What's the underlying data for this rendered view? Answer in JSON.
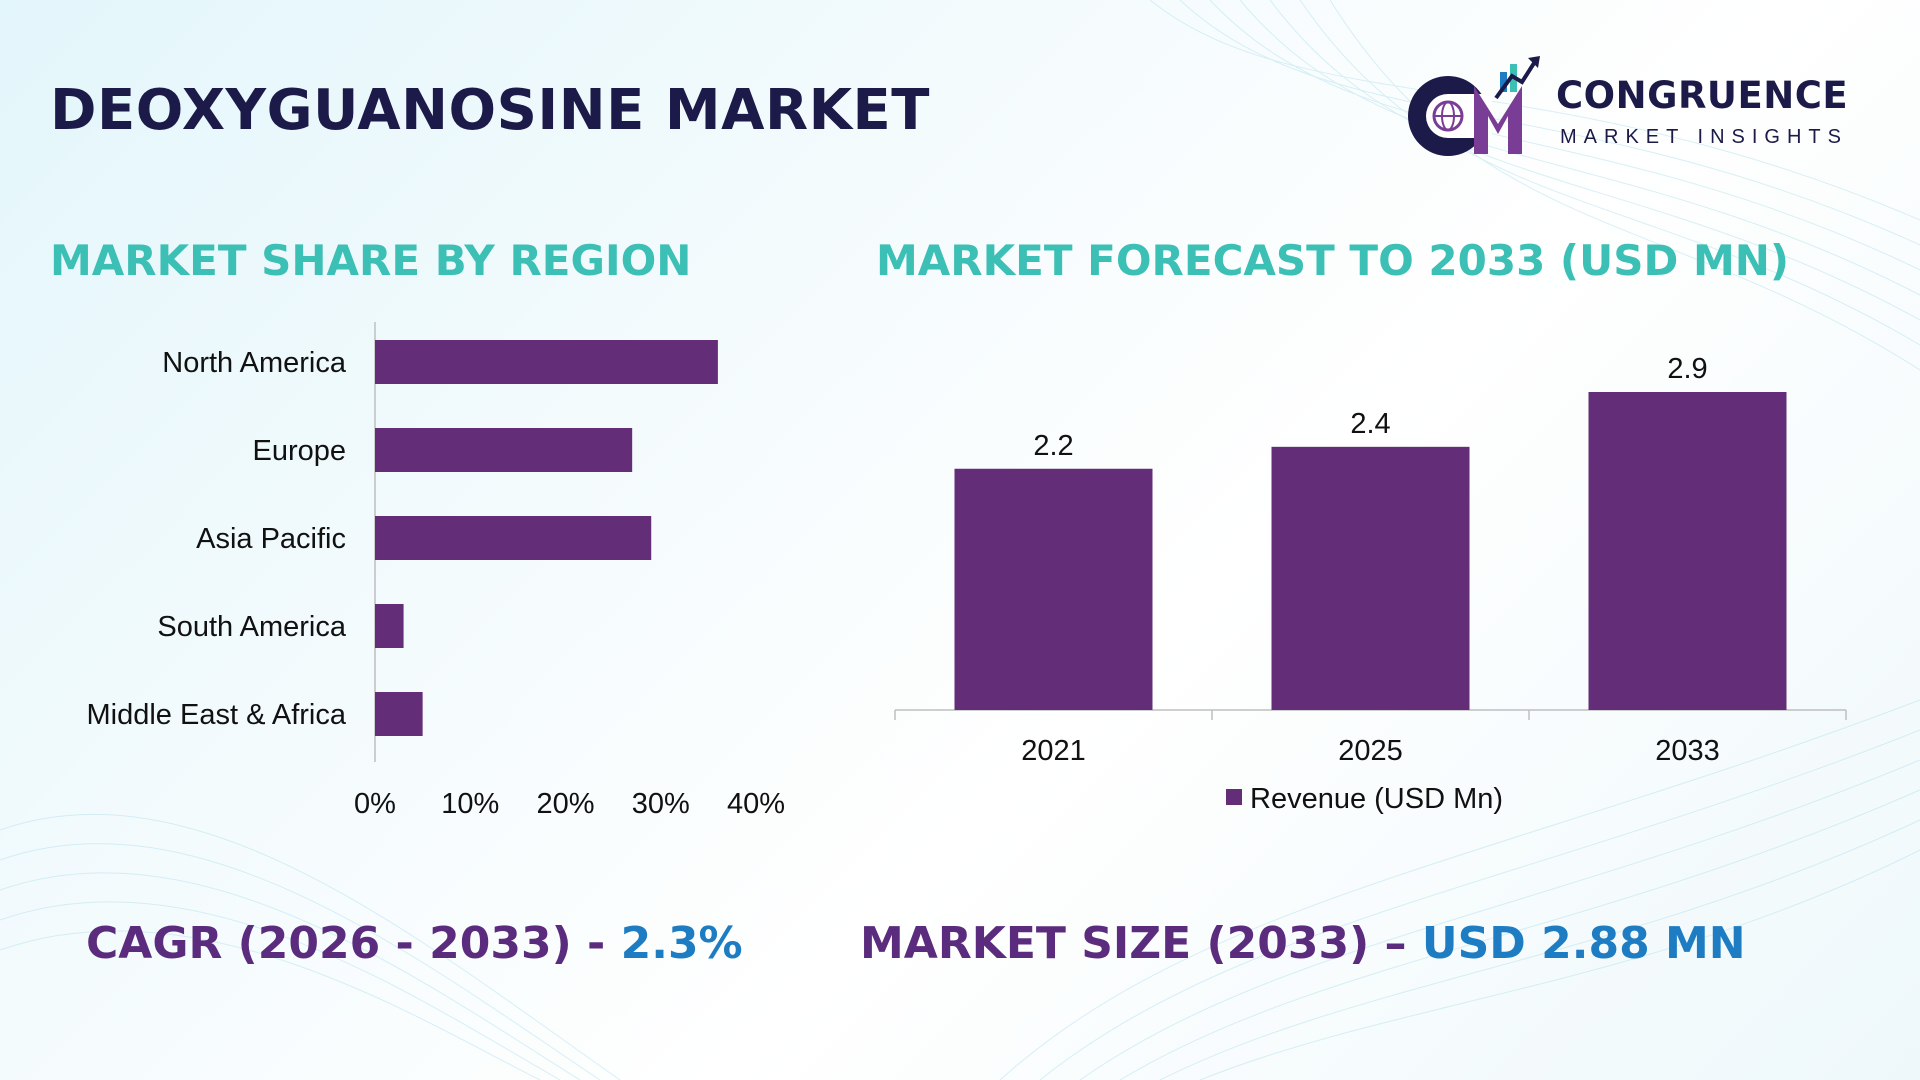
{
  "header": {
    "title": "DEOXYGUANOSINE MARKET"
  },
  "logo": {
    "name": "CONGRUENCE",
    "tagline": "MARKET INSIGHTS",
    "mark_letters": "CM"
  },
  "colors": {
    "bar": "#642d78",
    "title": "#1b1a48",
    "section": "#3cbfb4",
    "stat_label": "#5b2c7e",
    "stat_value": "#1e7dc2"
  },
  "sections": {
    "left_title": "MARKET SHARE BY REGION",
    "right_title": "MARKET FORECAST TO 2033 (USD MN)"
  },
  "chart_data": [
    {
      "type": "bar",
      "orientation": "horizontal",
      "title": "MARKET SHARE BY REGION",
      "categories": [
        "North America",
        "Europe",
        "Asia Pacific",
        "South America",
        "Middle East & Africa"
      ],
      "values": [
        36,
        27,
        29,
        3,
        5
      ],
      "xlim": [
        0,
        40
      ],
      "x_ticks": [
        "0%",
        "10%",
        "20%",
        "30%",
        "40%"
      ],
      "grid": false,
      "legend": "none"
    },
    {
      "type": "bar",
      "orientation": "vertical",
      "title": "MARKET FORECAST TO 2033 (USD MN)",
      "categories": [
        "2021",
        "2025",
        "2033"
      ],
      "series": [
        {
          "name": "Revenue (USD Mn)",
          "values": [
            2.2,
            2.4,
            2.9
          ]
        }
      ],
      "data_labels": [
        "2.2",
        "2.4",
        "2.9"
      ],
      "ylim": [
        0,
        2.9
      ],
      "grid": false,
      "legend": "bottom"
    }
  ],
  "footer": {
    "cagr_label": "CAGR (2026 - 2033) - ",
    "cagr_value": "2.3%",
    "size_label": "MARKET SIZE (2033) – ",
    "size_value": "USD 2.88 MN"
  }
}
